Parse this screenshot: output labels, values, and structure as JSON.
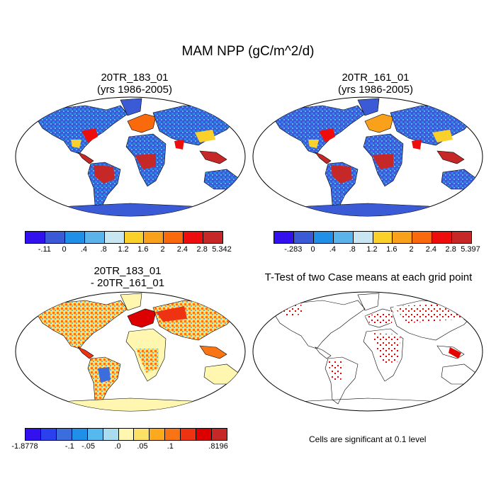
{
  "title": "MAM NPP (gC/m^2/d)",
  "panels": {
    "p1": {
      "line1": "20TR_183_01",
      "line2": "(yrs 1986-2005)"
    },
    "p2": {
      "line1": "20TR_161_01",
      "line2": "(yrs 1986-2005)"
    },
    "p3": {
      "line1": "20TR_183_01",
      "line2": "- 20TR_161_01"
    },
    "p4": {
      "line1": "T-Test of two Case means at each grid point"
    }
  },
  "colorbars": {
    "cb1": {
      "colors": [
        "#3311ee",
        "#3b5bd6",
        "#1f8fe8",
        "#5ab4ea",
        "#c8e6f2",
        "#fad02a",
        "#f9a11a",
        "#f96a0c",
        "#ee0d0d",
        "#c62828"
      ],
      "labels": [
        "-.11",
        "0",
        ".4",
        ".8",
        "1.2",
        "1.6",
        "2",
        "2.4",
        "2.8",
        "5.342"
      ]
    },
    "cb2": {
      "colors": [
        "#3311ee",
        "#3b5bd6",
        "#1f8fe8",
        "#5ab4ea",
        "#c8e6f2",
        "#fad02a",
        "#f9a11a",
        "#f96a0c",
        "#ee0d0d",
        "#c62828"
      ],
      "labels": [
        "-.283",
        "0",
        ".4",
        ".8",
        "1.2",
        "1.6",
        "2",
        "2.4",
        "2.8",
        "5.397"
      ]
    },
    "cb3": {
      "colors": [
        "#3311ee",
        "#2b40ee",
        "#3b6ddd",
        "#1f8fe8",
        "#55b8ee",
        "#a9dcee",
        "#fff7b0",
        "#fde066",
        "#fbaa1e",
        "#f97414",
        "#ee3313",
        "#dd0000",
        "#c62828"
      ],
      "labels": [
        "-1.8778",
        "-.1",
        "-.05",
        ".0",
        ".05",
        ".1",
        ".8196"
      ]
    }
  },
  "note": "Cells are significant at 0.1 level",
  "colors": {
    "ocean": "#ffffff",
    "outline": "#000000",
    "significant": "#e60000"
  }
}
